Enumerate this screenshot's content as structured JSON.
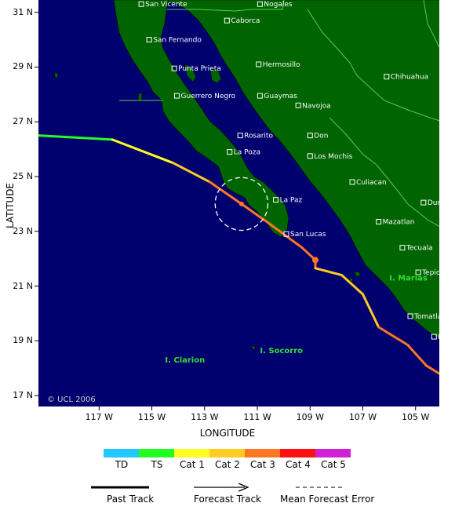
{
  "map": {
    "lon_range": [
      -119.3,
      -104.1
    ],
    "lat_range": [
      16.6,
      31.45
    ],
    "latitude_ticks": [
      {
        "value": 31,
        "label": "31 N"
      },
      {
        "value": 29,
        "label": "29 N"
      },
      {
        "value": 27,
        "label": "27 N"
      },
      {
        "value": 25,
        "label": "25 N"
      },
      {
        "value": 23,
        "label": "23 N"
      },
      {
        "value": 21,
        "label": "21 N"
      },
      {
        "value": 19,
        "label": "19 N"
      },
      {
        "value": 17,
        "label": "17 N"
      }
    ],
    "longitude_ticks": [
      {
        "value": -117,
        "label": "117 W"
      },
      {
        "value": -115,
        "label": "115 W"
      },
      {
        "value": -113,
        "label": "113 W"
      },
      {
        "value": -111,
        "label": "111 W"
      },
      {
        "value": -109,
        "label": "109 W"
      },
      {
        "value": -107,
        "label": "107 W"
      },
      {
        "value": -105,
        "label": "105 W"
      }
    ],
    "xlabel": "LONGITUDE",
    "ylabel": "LATITUDE",
    "copyright": "© UCL 2006",
    "colors": {
      "ocean": "#00006e",
      "land": "#006400",
      "border": "#55cc55",
      "coast": "#000000"
    },
    "cities": [
      {
        "name": "San Vicente",
        "lon": -115.4,
        "lat": 31.3
      },
      {
        "name": "Nogales",
        "lon": -110.9,
        "lat": 31.3
      },
      {
        "name": "Caborca",
        "lon": -112.15,
        "lat": 30.7
      },
      {
        "name": "San Fernando",
        "lon": -115.1,
        "lat": 30.0
      },
      {
        "name": "Hermosillo",
        "lon": -110.95,
        "lat": 29.1
      },
      {
        "name": "Punta Prieta",
        "lon": -114.15,
        "lat": 28.95
      },
      {
        "name": "Chihuahua",
        "lon": -106.1,
        "lat": 28.65
      },
      {
        "name": "Guerrero Negro",
        "lon": -114.05,
        "lat": 27.95
      },
      {
        "name": "Guaymas",
        "lon": -110.9,
        "lat": 27.95
      },
      {
        "name": "Navojoa",
        "lon": -109.45,
        "lat": 27.6
      },
      {
        "name": "Don",
        "lon": -109.0,
        "lat": 26.5
      },
      {
        "name": "Rosarito",
        "lon": -111.65,
        "lat": 26.5
      },
      {
        "name": "La Poza",
        "lon": -112.05,
        "lat": 25.9
      },
      {
        "name": "Los Mochis",
        "lon": -109.0,
        "lat": 25.75
      },
      {
        "name": "Culiacan",
        "lon": -107.4,
        "lat": 24.8
      },
      {
        "name": "La Paz",
        "lon": -110.3,
        "lat": 24.15
      },
      {
        "name": "Durango",
        "lon": -104.7,
        "lat": 24.05
      },
      {
        "name": "Mazatlan",
        "lon": -106.4,
        "lat": 23.35
      },
      {
        "name": "San Lucas",
        "lon": -109.9,
        "lat": 22.9
      },
      {
        "name": "Tecuala",
        "lon": -105.5,
        "lat": 22.4
      },
      {
        "name": "Tepic",
        "lon": -104.9,
        "lat": 21.5
      },
      {
        "name": "Tomatlan",
        "lon": -105.2,
        "lat": 19.9
      },
      {
        "name": "Manzanillo",
        "lon": -104.3,
        "lat": 19.15
      }
    ],
    "islands": [
      {
        "name": "I. Marias",
        "lon": -106.0,
        "lat": 21.2
      },
      {
        "name": "I. Clarion",
        "lon": -114.5,
        "lat": 18.2
      },
      {
        "name": "I. Socorro",
        "lon": -110.9,
        "lat": 18.55
      }
    ],
    "track": [
      {
        "lon": -119.3,
        "lat": 26.5,
        "category": "TS"
      },
      {
        "lon": -116.5,
        "lat": 26.35,
        "category": "Cat 1"
      },
      {
        "lon": -114.2,
        "lat": 25.5,
        "category": "Cat 2"
      },
      {
        "lon": -112.8,
        "lat": 24.8,
        "category": "Cat 3"
      },
      {
        "lon": -111.6,
        "lat": 24.0,
        "category": "Cat 3"
      },
      {
        "lon": -110.5,
        "lat": 23.25,
        "category": "Cat 3"
      },
      {
        "lon": -109.3,
        "lat": 22.4,
        "category": "Cat 3"
      },
      {
        "lon": -108.8,
        "lat": 21.95,
        "category": "Cat 3"
      },
      {
        "lon": -108.8,
        "lat": 21.65,
        "category": "Cat 2"
      },
      {
        "lon": -107.8,
        "lat": 21.4,
        "category": "Cat 2"
      },
      {
        "lon": -107.0,
        "lat": 20.7,
        "category": "Cat 2"
      },
      {
        "lon": -106.4,
        "lat": 19.5,
        "category": "Cat 3"
      },
      {
        "lon": -105.3,
        "lat": 18.85,
        "category": "Cat 3"
      },
      {
        "lon": -104.6,
        "lat": 18.1,
        "category": "Cat 3"
      },
      {
        "lon": -104.1,
        "lat": 17.8,
        "category": "Cat 3"
      }
    ],
    "forecast_points": [
      {
        "lon": -111.6,
        "lat": 24.0
      },
      {
        "lon": -108.8,
        "lat": 21.95
      }
    ],
    "error_circle": {
      "lon": -111.6,
      "lat": 24.0,
      "radius_deg": 1.0
    }
  },
  "legend": {
    "categories": [
      {
        "label": "TD",
        "color": "#22c8ff"
      },
      {
        "label": "TS",
        "color": "#22ff22"
      },
      {
        "label": "Cat 1",
        "color": "#ffff22"
      },
      {
        "label": "Cat 2",
        "color": "#ffcc22"
      },
      {
        "label": "Cat 3",
        "color": "#ff7722"
      },
      {
        "label": "Cat 4",
        "color": "#ff1111"
      },
      {
        "label": "Cat 5",
        "color": "#d020d8"
      }
    ],
    "past_track_label": "Past Track",
    "forecast_track_label": "Forecast Track",
    "mean_error_label": "Mean Forecast Error"
  }
}
